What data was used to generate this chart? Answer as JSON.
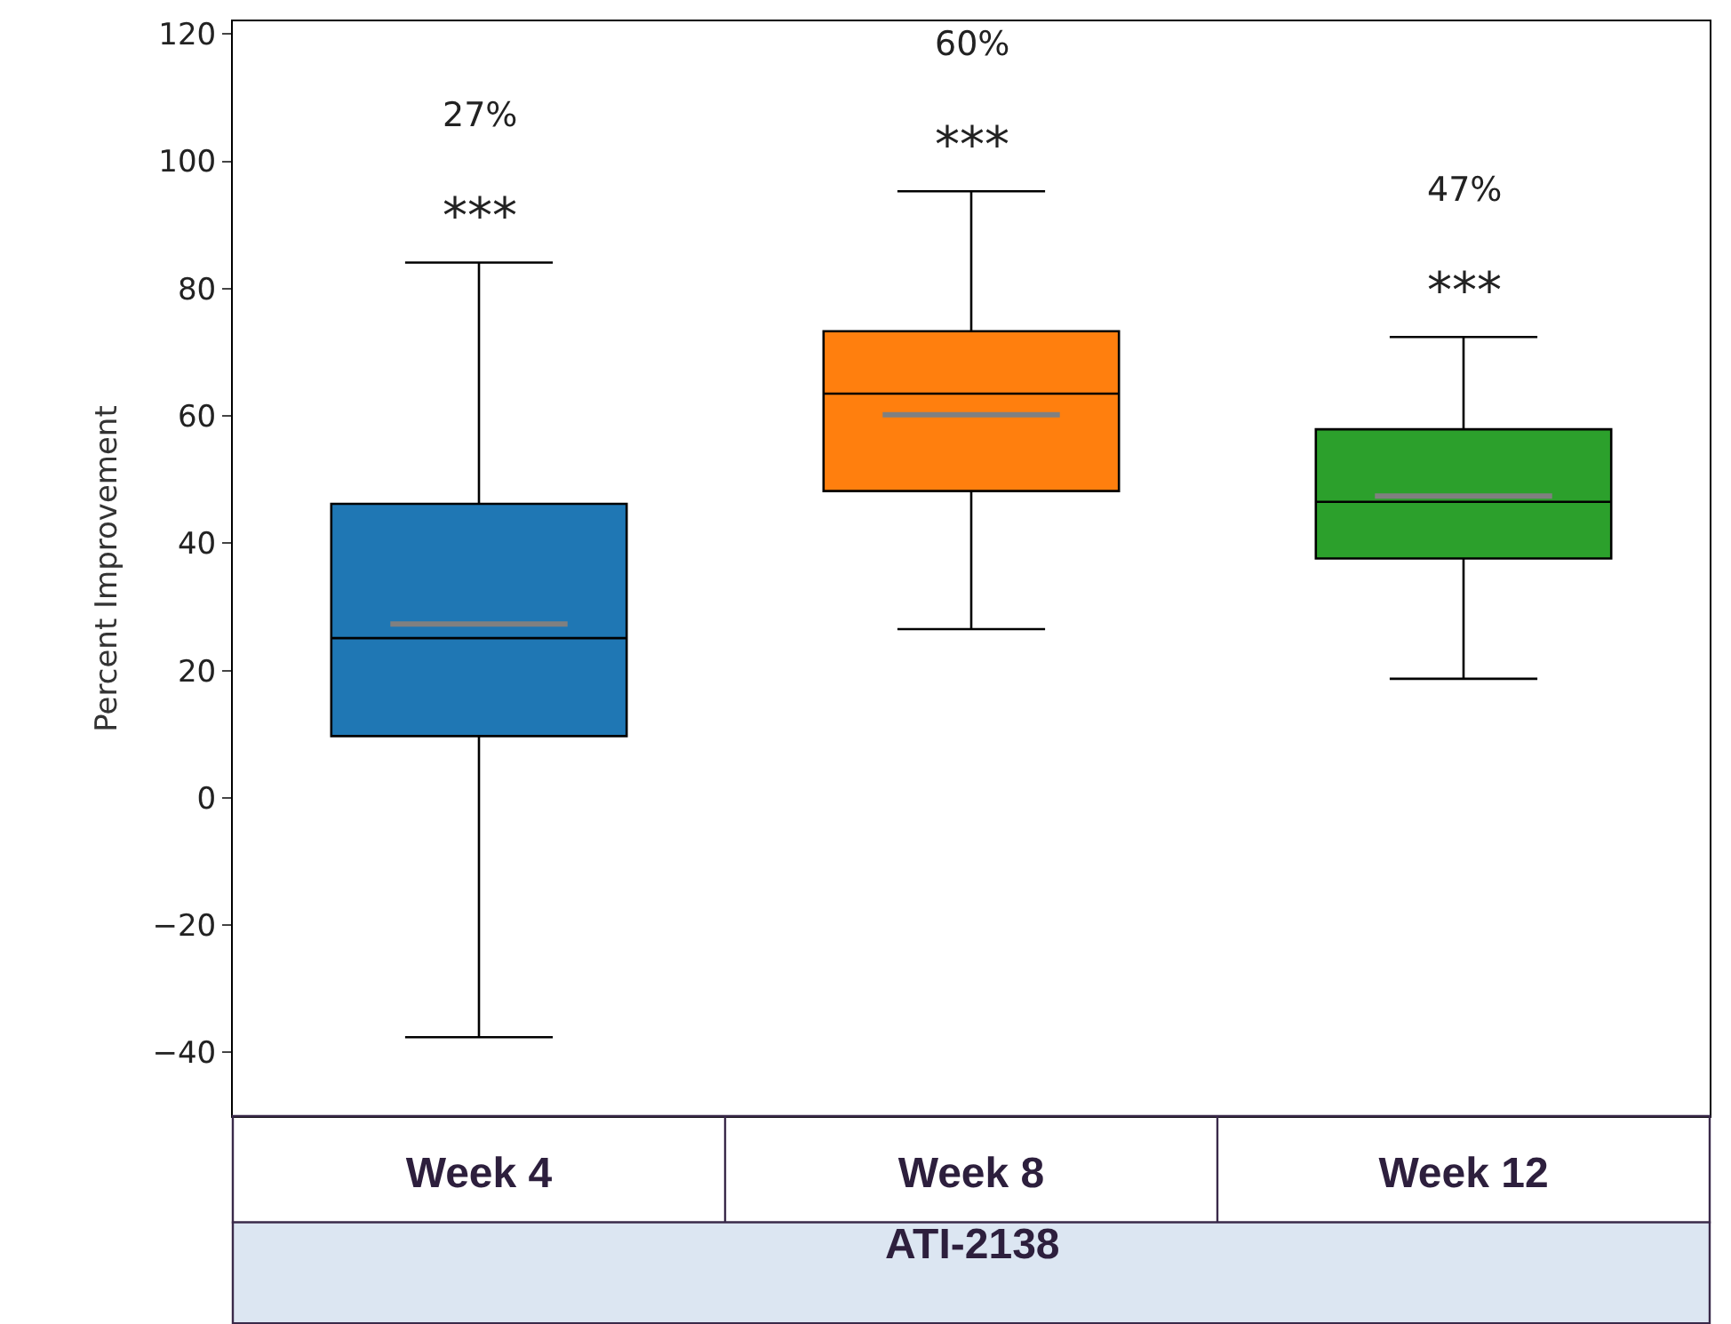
{
  "chart_data": {
    "type": "box",
    "ylabel": "Percent Improvement",
    "categories": [
      "Week 4",
      "Week 8",
      "Week 12"
    ],
    "colors": [
      "#1f77b4",
      "#ff7f0e",
      "#2ca02c"
    ],
    "boxes": [
      {
        "low": -37.6,
        "q1": 9.7,
        "median": 25.1,
        "q3": 46.2,
        "high": 84.1,
        "mean": 27.3
      },
      {
        "low": 26.5,
        "q1": 48.2,
        "median": 63.5,
        "q3": 73.3,
        "high": 95.3,
        "mean": 60.2
      },
      {
        "low": 18.7,
        "q1": 37.6,
        "median": 46.5,
        "q3": 57.9,
        "high": 72.4,
        "mean": 47.4
      }
    ],
    "ylim": [
      -50,
      122
    ],
    "yticks": [
      -40,
      -20,
      0,
      20,
      40,
      60,
      80,
      100,
      120
    ],
    "annotations": [
      "ATI-2138",
      "27%",
      "***",
      "60%",
      "***",
      "47%",
      "***"
    ]
  }
}
